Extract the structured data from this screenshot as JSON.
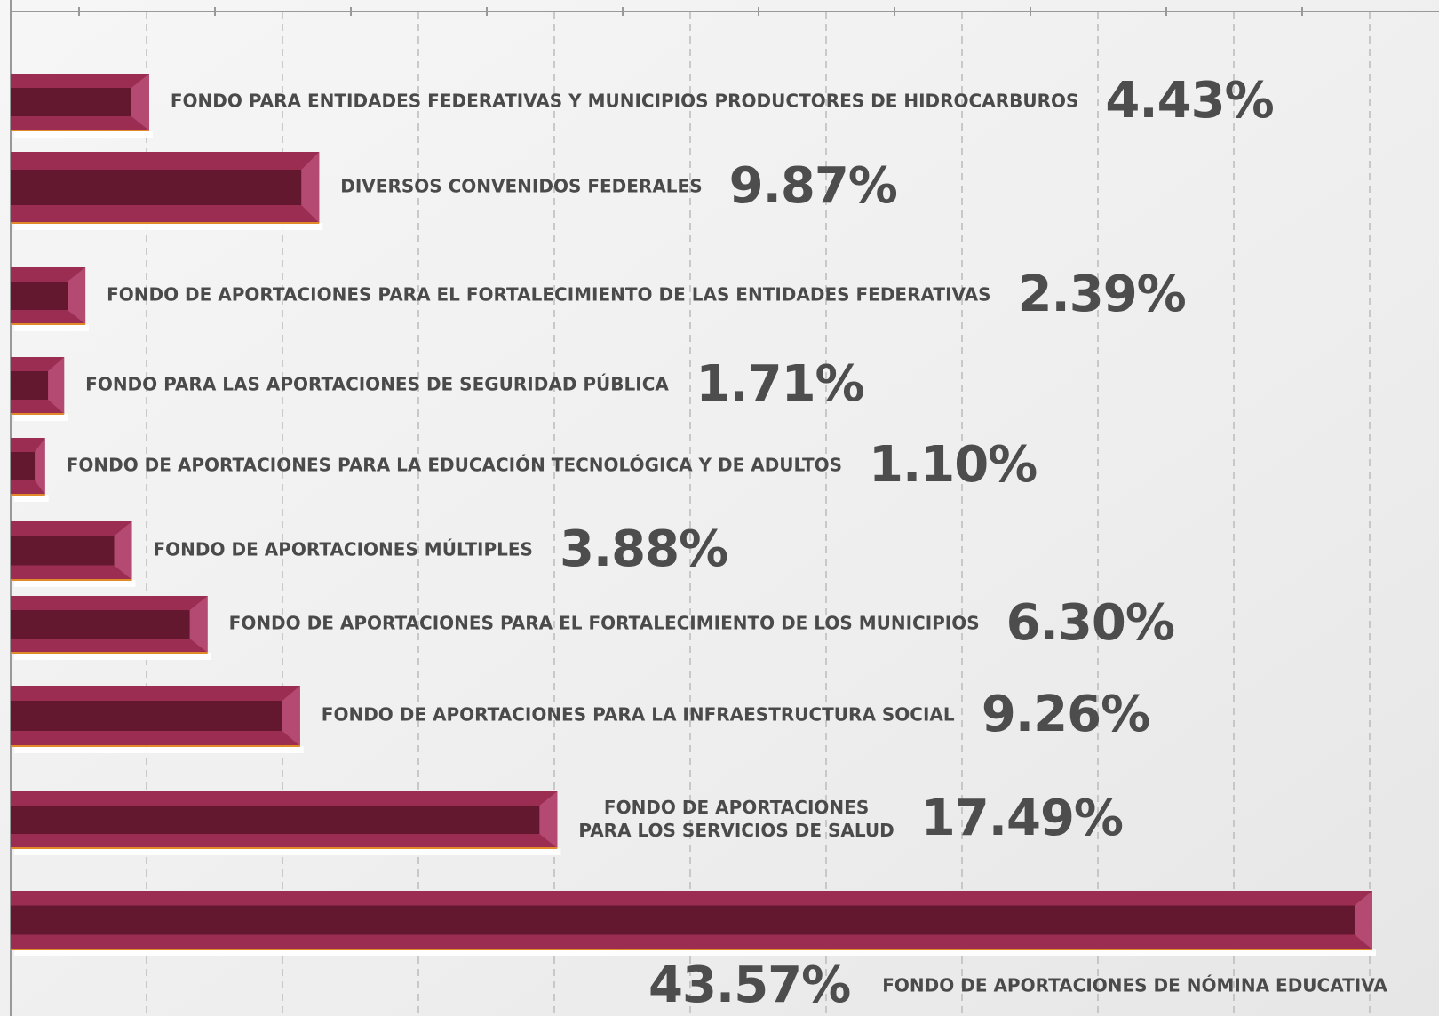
{
  "chart_data": {
    "type": "bar",
    "orientation": "horizontal",
    "categories": [
      "FONDO PARA ENTIDADES FEDERATIVAS Y MUNICIPIOS PRODUCTORES DE HIDROCARBUROS",
      "DIVERSOS CONVENIDOS FEDERALES",
      "FONDO DE APORTACIONES PARA EL FORTALECIMIENTO DE LAS ENTIDADES FEDERATIVAS",
      "FONDO PARA LAS APORTACIONES DE SEGURIDAD PÚBLICA",
      "FONDO DE APORTACIONES PARA LA EDUCACIÓN TECNOLÓGICA Y DE ADULTOS",
      "FONDO DE APORTACIONES MÚLTIPLES",
      "FONDO DE APORTACIONES PARA EL FORTALECIMIENTO DE LOS MUNICIPIOS",
      "FONDO DE APORTACIONES PARA LA INFRAESTRUCTURA SOCIAL",
      "FONDO DE APORTACIONES\nPARA LOS SERVICIOS DE SALUD",
      "FONDO DE APORTACIONES DE NÓMINA EDUCATIVA"
    ],
    "values": [
      4.43,
      9.87,
      2.39,
      1.71,
      1.1,
      3.88,
      6.3,
      9.26,
      17.49,
      43.57
    ],
    "value_labels": [
      "4.43%",
      "9.87%",
      "2.39%",
      "1.71%",
      "1.10%",
      "3.88%",
      "6.30%",
      "9.26%",
      "17.49%",
      "43.57%"
    ],
    "color": "#9b2d52",
    "grid": true
  }
}
